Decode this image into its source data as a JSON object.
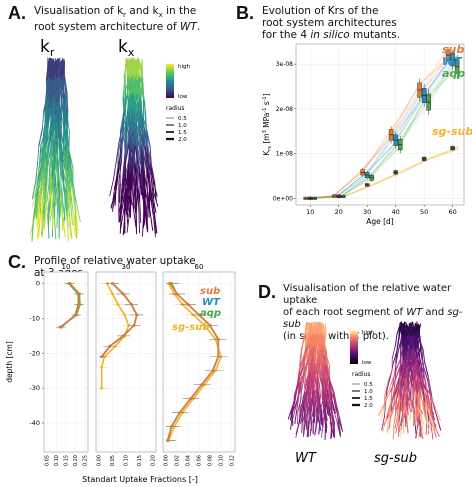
{
  "panels": {
    "a": {
      "letter": "A.",
      "title_line1": "Visualisation of k",
      "title_sub1": "r",
      "title_and": " and k",
      "title_sub2": "x",
      "title_rest": " in the",
      "title_line2_pre": "root system architecture of ",
      "title_line2_italic": "WT",
      "title_line2_post": ".",
      "label_kr": "kr",
      "label_kx": "kx",
      "legend_high": "high",
      "legend_low": "low",
      "legend_radius": "radius",
      "radius_values": [
        "0.5",
        "1.0",
        "1.5",
        "2.0"
      ]
    },
    "b": {
      "letter": "B.",
      "title_line1": "Evolution of Krs of the",
      "title_line2": "root system architectures",
      "title_line3_pre": "for the 4 ",
      "title_line3_italic": "in silico",
      "title_line3_post": " mutants."
    },
    "c": {
      "letter": "C.",
      "title_line1": "Profile of relative water uptake",
      "title_line2": "at 3 ages."
    },
    "d": {
      "letter": "D.",
      "title_line1": "Visualisation of the relative water uptake",
      "title_line2_pre": "of each root segment of ",
      "title_line2_i1": "WT",
      "title_line2_mid": " and ",
      "title_line2_i2": "sg-sub",
      "title_line3": "(in scale with C plot).",
      "legend_high": "high",
      "legend_low": "low",
      "legend_radius": "radius",
      "radius_values": [
        "0.5",
        "1.0",
        "1.5",
        "2.0"
      ],
      "label_wt": "WT",
      "label_sgsub": "sg-sub"
    }
  },
  "colors": {
    "sub": "#e07b39",
    "wt": "#2b8cbe",
    "aqp": "#4aa64a",
    "sg_sub": "#f0b429",
    "dark": "#4d4d4d"
  },
  "chart_data": [
    {
      "type": "box",
      "title": "",
      "xlabel": "Age [d]",
      "ylabel": "Krs [m3 MPa-1 s-1]",
      "ylabel_main": "K",
      "ylabel_sub": "rs",
      "ylabel_rest": " [m",
      "ylabel_sup1": "3",
      "ylabel_mid": " MPa",
      "ylabel_sup2": "-1",
      "ylabel_s": " s",
      "ylabel_sup3": "-1",
      "ylabel_end": "]",
      "xlim": [
        5,
        64
      ],
      "ylim": [
        -1.5e-09,
        3.45e-08
      ],
      "xticks": [
        "10",
        "20",
        "30",
        "40",
        "50",
        "60"
      ],
      "yticks": [
        "0e+00",
        "1e-08",
        "2e-08",
        "3e-08"
      ],
      "ytick_values": [
        0,
        1e-08,
        2e-08,
        3e-08
      ],
      "xtick_values": [
        10,
        20,
        30,
        40,
        50,
        60
      ],
      "series": [
        {
          "name": "sub",
          "color": "#e07b39",
          "x": [
            10,
            20,
            30,
            40,
            50,
            60
          ],
          "y": [
            0.0,
            5e-10,
            5.8e-09,
            1.42e-08,
            2.42e-08,
            3.2e-08
          ],
          "spread": [
            0.0,
            2e-10,
            6e-10,
            1.2e-09,
            1.6e-09,
            1.2e-09
          ]
        },
        {
          "name": "WT",
          "color": "#2b8cbe",
          "x": [
            10,
            20,
            30,
            40,
            50,
            60
          ],
          "y": [
            0.0,
            4e-10,
            5.2e-09,
            1.3e-08,
            2.3e-08,
            3.1e-08
          ],
          "spread": [
            0.0,
            2e-10,
            6e-10,
            1.2e-09,
            1.6e-09,
            1.4e-09
          ]
        },
        {
          "name": "aqp",
          "color": "#4aa64a",
          "x": [
            10,
            20,
            30,
            40,
            50,
            60
          ],
          "y": [
            0.0,
            4e-10,
            4.6e-09,
            1.2e-08,
            2.15e-08,
            2.95e-08
          ],
          "spread": [
            0.0,
            2e-10,
            6e-10,
            1.2e-09,
            1.8e-09,
            1.6e-09
          ]
        },
        {
          "name": "sg-sub",
          "color": "#f0b429",
          "x": [
            10,
            20,
            30,
            40,
            50,
            60
          ],
          "y": [
            0.0,
            5e-10,
            3e-09,
            5.8e-09,
            8.8e-09,
            1.12e-08
          ],
          "spread": [
            0.0,
            2e-10,
            3e-10,
            4e-10,
            4e-10,
            4e-10
          ]
        }
      ]
    },
    {
      "type": "line",
      "xlabel": "Standart Uptake Fractions [-]",
      "ylabel": "depth [cm]",
      "facets": [
        {
          "label": "10",
          "xlim": [
            0.05,
            0.25
          ],
          "xticks": [
            "0.05",
            "0.10",
            "0.15",
            "0.20",
            "0.25"
          ],
          "xtick_values": [
            0.05,
            0.1,
            0.15,
            0.2,
            0.25
          ],
          "ylim": [
            -13,
            1
          ],
          "series": [
            {
              "name": "sub",
              "x": [
                0.17,
                0.22,
                0.22,
                0.205,
                0.12
              ],
              "y": [
                0,
                -3,
                -6,
                -9,
                -12.5
              ]
            },
            {
              "name": "WT",
              "x": [
                0.17,
                0.22,
                0.22,
                0.205,
                0.12
              ],
              "y": [
                0,
                -3,
                -6,
                -9,
                -12.5
              ]
            },
            {
              "name": "aqp",
              "x": [
                0.165,
                0.215,
                0.215,
                0.2,
                0.125
              ],
              "y": [
                0,
                -3,
                -6,
                -9,
                -12.5
              ]
            },
            {
              "name": "sg-sub",
              "x": [
                0.17,
                0.22,
                0.225,
                0.205,
                0.12
              ],
              "y": [
                0,
                -3,
                -6,
                -9,
                -12.5
              ]
            }
          ]
        },
        {
          "label": "30",
          "xlim": [
            0.0,
            0.2
          ],
          "xticks": [
            "0.00",
            "0.05",
            "0.10",
            "0.15",
            "0.20"
          ],
          "xtick_values": [
            0,
            0.05,
            0.1,
            0.15,
            0.2
          ],
          "ylim": [
            -31,
            1
          ],
          "series": [
            {
              "name": "sub",
              "x": [
                0.05,
                0.09,
                0.12,
                0.14,
                0.13,
                0.09,
                0.04,
                0.01
              ],
              "y": [
                0,
                -3,
                -6,
                -9,
                -12,
                -15,
                -18,
                -21
              ]
            },
            {
              "name": "WT",
              "x": [
                0.05,
                0.09,
                0.12,
                0.14,
                0.13,
                0.09,
                0.04,
                0.01
              ],
              "y": [
                0,
                -3,
                -6,
                -9,
                -12,
                -15,
                -18,
                -21
              ]
            },
            {
              "name": "aqp",
              "x": [
                0.05,
                0.09,
                0.12,
                0.14,
                0.13,
                0.09,
                0.04,
                0.01
              ],
              "y": [
                0,
                -3,
                -6,
                -9,
                -12,
                -15,
                -18,
                -21
              ]
            },
            {
              "name": "sg-sub",
              "x": [
                0.03,
                0.05,
                0.07,
                0.095,
                0.11,
                0.095,
                0.06,
                0.02,
                0.01,
                0.01
              ],
              "y": [
                0,
                -3,
                -6,
                -9,
                -12,
                -15,
                -18,
                -21,
                -24,
                -30
              ]
            }
          ]
        },
        {
          "label": "60",
          "xlim": [
            0.0,
            0.12
          ],
          "xticks": [
            "0.00",
            "0.02",
            "0.04",
            "0.06",
            "0.08",
            "0.10",
            "0.12"
          ],
          "xtick_values": [
            0,
            0.02,
            0.04,
            0.06,
            0.08,
            0.1,
            0.12
          ],
          "ylim": [
            -46,
            1
          ],
          "series": [
            {
              "name": "sub",
              "x": [
                0.008,
                0.02,
                0.04,
                0.06,
                0.08,
                0.095,
                0.095,
                0.085,
                0.065,
                0.045,
                0.025,
                0.01,
                0.003
              ],
              "y": [
                0,
                -3,
                -6,
                -9,
                -12,
                -16,
                -21,
                -25,
                -29,
                -33,
                -37,
                -41,
                -45
              ]
            },
            {
              "name": "WT",
              "x": [
                0.008,
                0.02,
                0.04,
                0.06,
                0.08,
                0.095,
                0.095,
                0.085,
                0.065,
                0.045,
                0.025,
                0.01,
                0.003
              ],
              "y": [
                0,
                -3,
                -6,
                -9,
                -12,
                -16,
                -21,
                -25,
                -29,
                -33,
                -37,
                -41,
                -45
              ]
            },
            {
              "name": "aqp",
              "x": [
                0.01,
                0.02,
                0.04,
                0.06,
                0.08,
                0.095,
                0.095,
                0.085,
                0.065,
                0.045,
                0.025,
                0.01,
                0.003
              ],
              "y": [
                0,
                -3,
                -6,
                -9,
                -12,
                -16,
                -21,
                -25,
                -29,
                -33,
                -37,
                -41,
                -45
              ]
            },
            {
              "name": "sg-sub",
              "x": [
                0.005,
                0.015,
                0.03,
                0.05,
                0.07,
                0.09,
                0.1,
                0.09,
                0.07,
                0.05,
                0.03,
                0.015,
                0.005
              ],
              "y": [
                0,
                -3,
                -6,
                -9,
                -12,
                -16,
                -21,
                -25,
                -29,
                -33,
                -37,
                -41,
                -45
              ]
            }
          ]
        }
      ],
      "yticks": [
        "0",
        "-10",
        "-20",
        "-30",
        "-40"
      ],
      "ytick_values": [
        0,
        -10,
        -20,
        -30,
        -40
      ],
      "legend": [
        "sub",
        "WT",
        "aqp",
        "sg-sub"
      ]
    }
  ]
}
